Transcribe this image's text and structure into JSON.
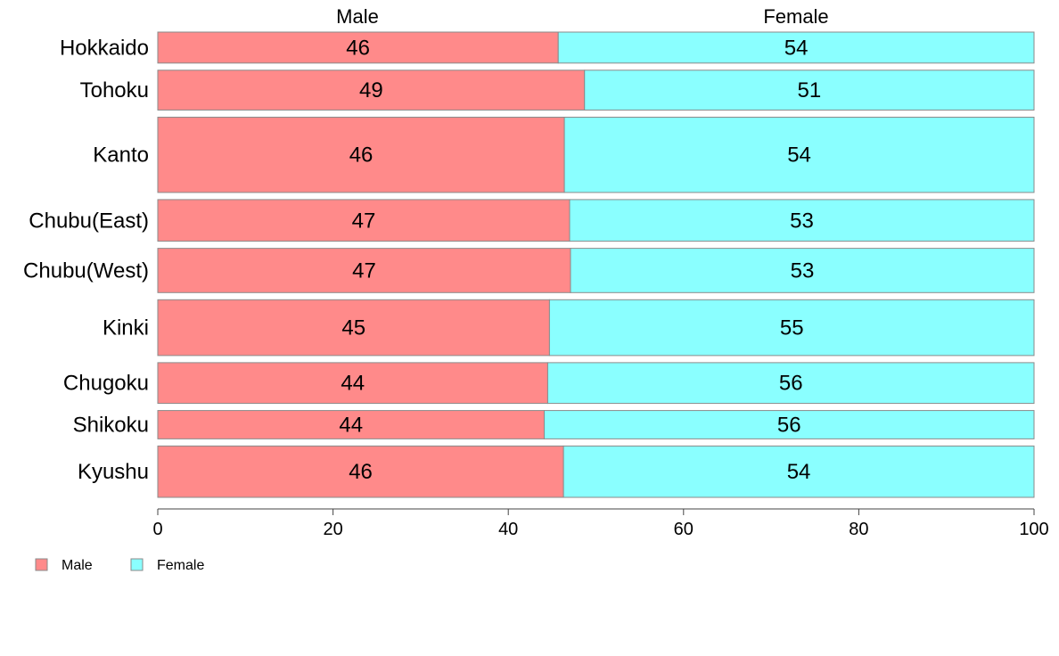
{
  "chart_data": {
    "type": "bar",
    "orientation": "horizontal",
    "stacked": true,
    "categories": [
      "Hokkaido",
      "Tohoku",
      "Kanto",
      "Chubu(East)",
      "Chubu(West)",
      "Kinki",
      "Chugoku",
      "Shikoku",
      "Kyushu"
    ],
    "row_weights": [
      3.5,
      4.5,
      8.5,
      4.7,
      5.0,
      6.3,
      4.6,
      3.2,
      5.8
    ],
    "series": [
      {
        "name": "Male",
        "color": "#ff8a8a",
        "values": [
          45.7,
          48.7,
          46.4,
          47.0,
          47.1,
          44.7,
          44.5,
          44.1,
          46.3
        ],
        "labels": [
          "46",
          "49",
          "46",
          "47",
          "47",
          "45",
          "44",
          "44",
          "46"
        ]
      },
      {
        "name": "Female",
        "color": "#8affff",
        "values": [
          54.3,
          51.3,
          53.6,
          53.0,
          52.9,
          55.3,
          55.5,
          55.9,
          53.7
        ],
        "labels": [
          "54",
          "51",
          "54",
          "53",
          "53",
          "55",
          "56",
          "56",
          "54"
        ]
      }
    ],
    "column_headers": [
      "Male",
      "Female"
    ],
    "xlim": [
      0,
      100
    ],
    "xticks": [
      0,
      20,
      40,
      60,
      80,
      100
    ],
    "grid": false,
    "legend": {
      "position": "bottom-left",
      "items": [
        "Male",
        "Female"
      ]
    }
  }
}
